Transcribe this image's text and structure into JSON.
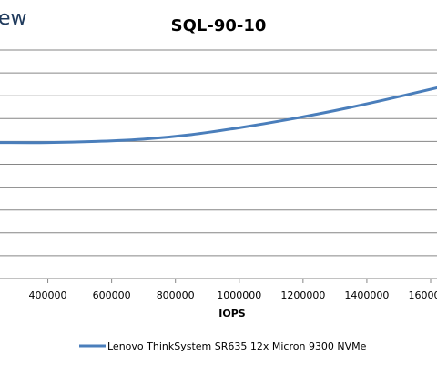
{
  "logo_fragment": "ew",
  "chart_data": {
    "type": "line",
    "title": "SQL-90-10",
    "xlabel": "IOPS",
    "ylabel": "",
    "x_ticks": [
      400000,
      600000,
      800000,
      1000000,
      1200000,
      1400000,
      1600000
    ],
    "x_tick_labels": [
      "400000",
      "600000",
      "800000",
      "1000000",
      "1200000",
      "1400000",
      "1600000"
    ],
    "xlim": [
      250000,
      1620000
    ],
    "ylim": [
      0,
      10
    ],
    "grid_y": true,
    "legend_position": "bottom",
    "series": [
      {
        "name": "Lenovo ThinkSystem SR635 12x Micron 9300 NVMe",
        "color": "#4a7ebb",
        "x": [
          250000,
          400000,
          550000,
          700000,
          850000,
          1000000,
          1150000,
          1300000,
          1450000,
          1620000
        ],
        "y": [
          5.95,
          5.95,
          6.0,
          6.1,
          6.3,
          6.6,
          6.95,
          7.35,
          7.8,
          8.35
        ]
      }
    ]
  }
}
